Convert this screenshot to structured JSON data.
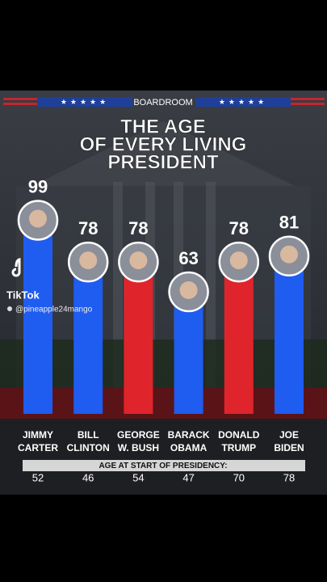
{
  "header": "BOARDROOM",
  "title": [
    "THE AGE",
    "OF EVERY LIVING",
    "PRESIDENT"
  ],
  "watermark": {
    "app": "TikTok",
    "handle": "@pineapple24mango"
  },
  "chart_data": {
    "type": "bar",
    "categories": [
      [
        "JIMMY",
        "CARTER"
      ],
      [
        "BILL",
        "CLINTON"
      ],
      [
        "GEORGE",
        "W. BUSH"
      ],
      [
        "BARACK",
        "OBAMA"
      ],
      [
        "DONALD",
        "TRUMP"
      ],
      [
        "JOE",
        "BIDEN"
      ]
    ],
    "values": [
      99,
      78,
      78,
      63,
      78,
      81
    ],
    "colors": [
      "#1f5cf0",
      "#1f5cf0",
      "#e0242b",
      "#1f5cf0",
      "#e0242b",
      "#1f5cf0"
    ],
    "age_at_start": {
      "label": "AGE AT START OF PRESIDENCY:",
      "values": [
        52,
        46,
        54,
        47,
        70,
        78
      ]
    }
  }
}
